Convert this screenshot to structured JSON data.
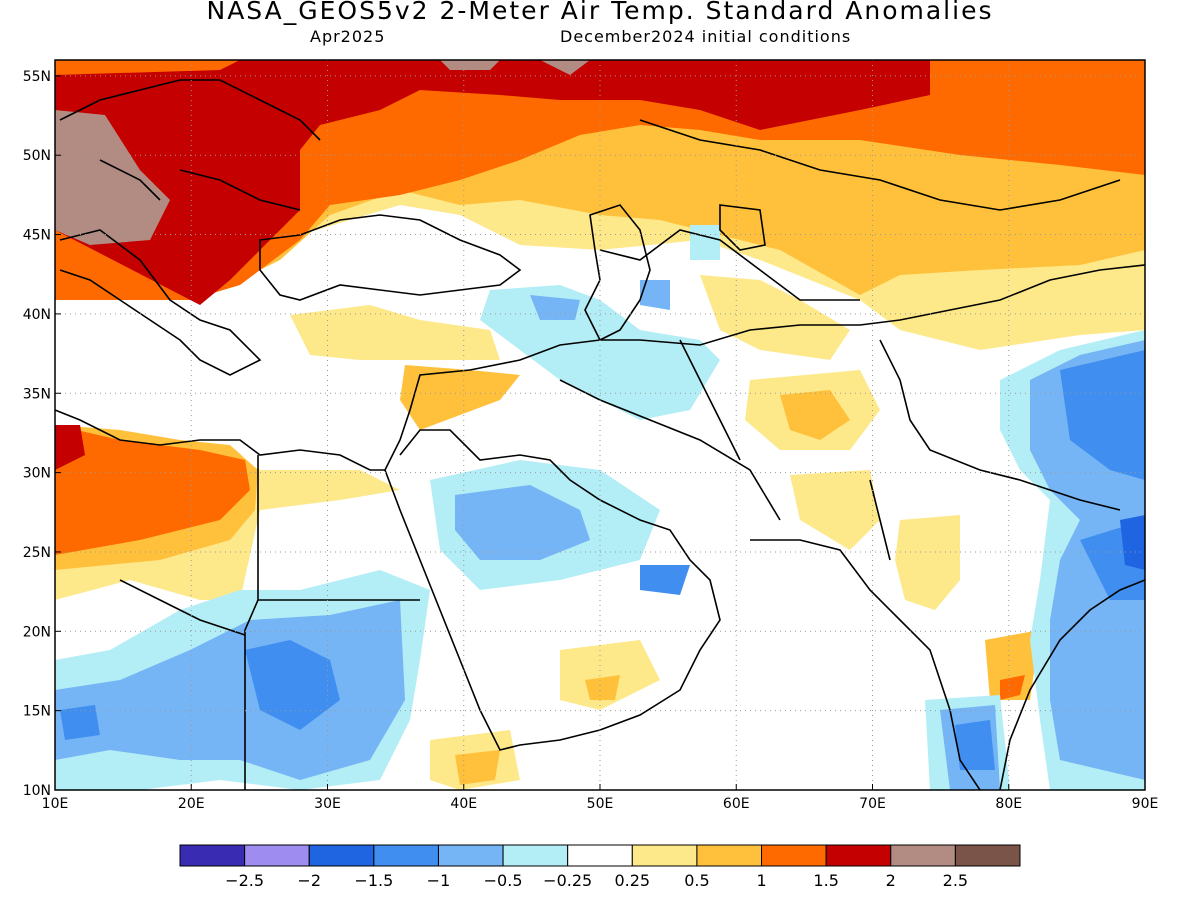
{
  "header": {
    "title": "NASA_GEOS5v2 2-Meter Air Temp. Standard Anomalies",
    "subtitle_left": "Apr2025",
    "subtitle_right": "December2024 initial conditions"
  },
  "map": {
    "region": "Middle East / South Asia",
    "lon_range": [
      10,
      90
    ],
    "lat_range": [
      10,
      56
    ],
    "lon_ticks": [
      "10E",
      "20E",
      "30E",
      "40E",
      "50E",
      "60E",
      "70E",
      "80E",
      "90E"
    ],
    "lat_ticks": [
      "10N",
      "15N",
      "20N",
      "25N",
      "30N",
      "35N",
      "40N",
      "45N",
      "50N",
      "55N"
    ],
    "gridlines": "dotted"
  },
  "legend": {
    "colors": [
      "#3a2bb3",
      "#9e8cf0",
      "#1f64e0",
      "#3f8ef0",
      "#75b4f5",
      "#b3edf5",
      "#ffffff",
      "#fde88a",
      "#ffc13b",
      "#ff6a00",
      "#c40000",
      "#b28c82",
      "#7a5448"
    ],
    "labels": [
      "-2.5",
      "-2",
      "-1.5",
      "-1",
      "-0.5",
      "-0.25",
      "0.25",
      "0.5",
      "1",
      "1.5",
      "2",
      "2.5"
    ]
  }
}
